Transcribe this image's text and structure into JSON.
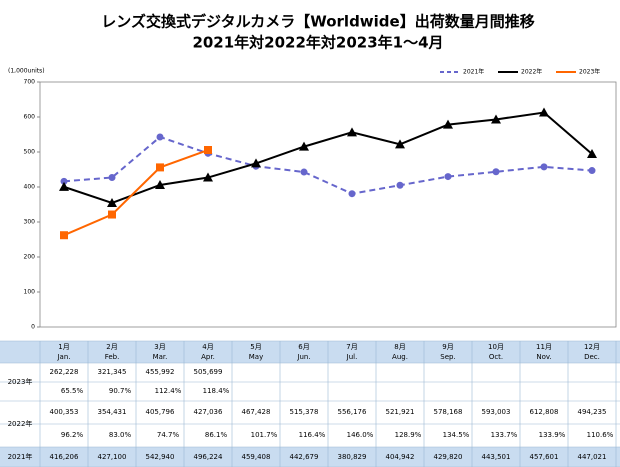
{
  "chart_data": {
    "type": "line",
    "title": "レンズ交換式デジタルカメラ【Worldwide】出荷数量月間推移",
    "subtitle": "2021年対2022年対2023年1～4月",
    "y_label": "(1,000units)",
    "categories": [
      "1月",
      "2月",
      "3月",
      "4月",
      "5月",
      "6月",
      "7月",
      "8月",
      "9月",
      "10月",
      "11月",
      "12月"
    ],
    "categories_en": [
      "Jan.",
      "Feb.",
      "Mar.",
      "Apr.",
      "May",
      "Jun.",
      "Jul.",
      "Aug.",
      "Sep.",
      "Oct.",
      "Nov.",
      "Dec."
    ],
    "ylim": [
      0,
      700
    ],
    "yticks": [
      0,
      100,
      200,
      300,
      400,
      500,
      600,
      700
    ],
    "legend": "top-right",
    "series": [
      {
        "name": "2021年",
        "color": "#6666cc",
        "dash": true,
        "marker": "circle",
        "values": [
          416.206,
          427.1,
          542.94,
          496.224,
          459.408,
          442.679,
          380.829,
          404.942,
          429.82,
          443.501,
          457.601,
          447.021
        ],
        "value_labels": [
          "416,206",
          "427,100",
          "542,940",
          "496,224",
          "459,408",
          "442,679",
          "380,829",
          "404,942",
          "429,820",
          "443,501",
          "457,601",
          "447,021"
        ]
      },
      {
        "name": "2022年",
        "color": "#000000",
        "dash": false,
        "marker": "triangle",
        "values": [
          400.353,
          354.431,
          405.796,
          427.036,
          467.428,
          515.378,
          556.176,
          521.921,
          578.168,
          593.003,
          612.808,
          494.235
        ],
        "value_labels": [
          "400,353",
          "354,431",
          "405,796",
          "427,036",
          "467,428",
          "515,378",
          "556,176",
          "521,921",
          "578,168",
          "593,003",
          "612,808",
          "494,235"
        ],
        "ratio_labels": [
          "96.2%",
          "83.0%",
          "74.7%",
          "86.1%",
          "101.7%",
          "116.4%",
          "146.0%",
          "128.9%",
          "134.5%",
          "133.7%",
          "133.9%",
          "110.6%"
        ]
      },
      {
        "name": "2023年",
        "color": "#ff6600",
        "dash": false,
        "marker": "square",
        "values": [
          262.228,
          321.345,
          455.992,
          505.699,
          null,
          null,
          null,
          null,
          null,
          null,
          null,
          null
        ],
        "value_labels": [
          "262,228",
          "321,345",
          "455,992",
          "505,699",
          null,
          null,
          null,
          null,
          null,
          null,
          null,
          null
        ],
        "ratio_labels": [
          "65.5%",
          "90.7%",
          "112.4%",
          "118.4%",
          null,
          null,
          null,
          null,
          null,
          null,
          null,
          null
        ]
      }
    ]
  }
}
